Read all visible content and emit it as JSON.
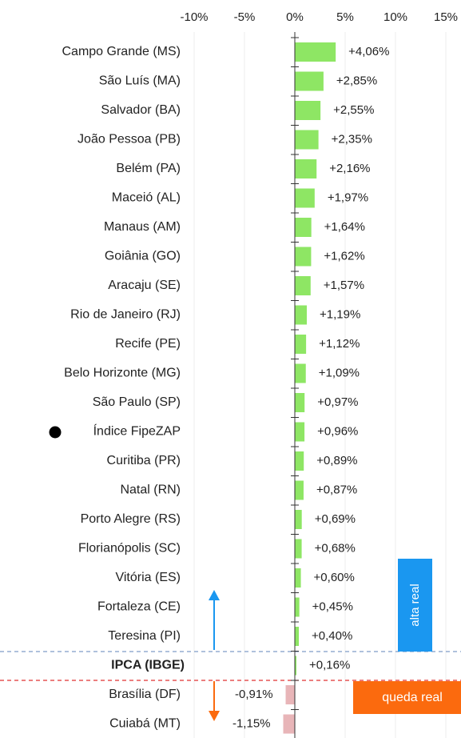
{
  "chart_data": {
    "type": "bar",
    "orientation": "horizontal",
    "categories": [
      "Campo Grande (MS)",
      "São Luís (MA)",
      "Salvador (BA)",
      "João Pessoa (PB)",
      "Belém (PA)",
      "Maceió (AL)",
      "Manaus (AM)",
      "Goiânia (GO)",
      "Aracaju (SE)",
      "Rio de Janeiro (RJ)",
      "Recife (PE)",
      "Belo Horizonte (MG)",
      "São Paulo (SP)",
      "Índice FipeZAP",
      "Curitiba (PR)",
      "Natal (RN)",
      "Porto Alegre (RS)",
      "Florianópolis (SC)",
      "Vitória (ES)",
      "Fortaleza (CE)",
      "Teresina (PI)",
      "IPCA (IBGE)",
      "Brasília (DF)",
      "Cuiabá (MT)"
    ],
    "values": [
      4.06,
      2.85,
      2.55,
      2.35,
      2.16,
      1.97,
      1.64,
      1.62,
      1.57,
      1.19,
      1.12,
      1.09,
      0.97,
      0.96,
      0.89,
      0.87,
      0.69,
      0.68,
      0.6,
      0.45,
      0.4,
      0.16,
      -0.91,
      -1.15
    ],
    "value_labels": [
      "+4,06%",
      "+2,85%",
      "+2,55%",
      "+2,35%",
      "+2,16%",
      "+1,97%",
      "+1,64%",
      "+1,62%",
      "+1,57%",
      "+1,19%",
      "+1,12%",
      "+1,09%",
      "+0,97%",
      "+0,96%",
      "+0,89%",
      "+0,87%",
      "+0,69%",
      "+0,68%",
      "+0,60%",
      "+0,45%",
      "+0,40%",
      "+0,16%",
      "-0,91%",
      "-1,15%"
    ],
    "color_positive": "#8ee664",
    "color_negative": "#e8b5b8",
    "xlim": [
      -10,
      15
    ],
    "xticks": [
      {
        "value": -10,
        "label": "-10%"
      },
      {
        "value": -5,
        "label": "-5%"
      },
      {
        "value": 0,
        "label": "0%"
      },
      {
        "value": 5,
        "label": "5%"
      },
      {
        "value": 10,
        "label": "10%"
      },
      {
        "value": 15,
        "label": "15%"
      }
    ],
    "grid": true,
    "annotations": [
      "alta real",
      "queda real"
    ]
  }
}
